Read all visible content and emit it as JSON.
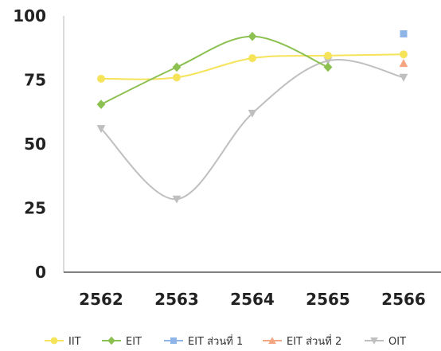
{
  "chart_data": {
    "type": "line",
    "title": "",
    "xlabel": "",
    "ylabel": "",
    "categories": [
      "2562",
      "2563",
      "2564",
      "2565",
      "2566"
    ],
    "ylim": [
      0,
      100
    ],
    "yticks": [
      "0",
      "25",
      "50",
      "75",
      "100"
    ],
    "grid": false,
    "legend_position": "bottom",
    "series": [
      {
        "name": "IIT",
        "color": "#f5e35a",
        "marker": "circle",
        "values": [
          75.5,
          76,
          83.5,
          84.5,
          85
        ]
      },
      {
        "name": "EIT",
        "color": "#8cc152",
        "marker": "diamond",
        "values": [
          65.5,
          80,
          92,
          80,
          null
        ]
      },
      {
        "name": "EIT ส่วนที่ 1",
        "color": "#8fb5e8",
        "marker": "square",
        "values": [
          null,
          null,
          null,
          null,
          93
        ]
      },
      {
        "name": "EIT ส่วนที่ 2",
        "color": "#f4a582",
        "marker": "triangle",
        "values": [
          null,
          null,
          null,
          null,
          81.5
        ]
      },
      {
        "name": "OIT",
        "color": "#bfbfbf",
        "marker": "triangle-down",
        "values": [
          56,
          28.5,
          62,
          82.5,
          76
        ]
      }
    ]
  }
}
